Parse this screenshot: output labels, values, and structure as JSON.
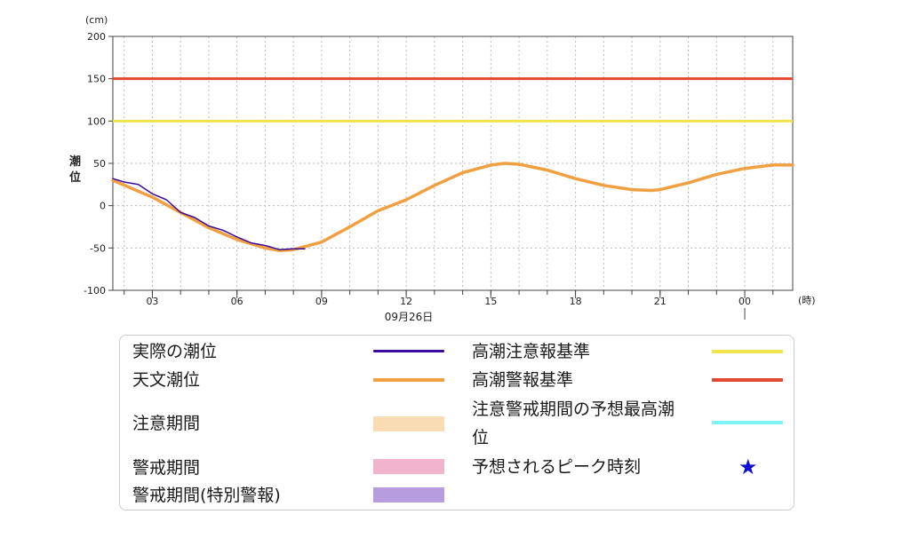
{
  "chart_data": {
    "type": "line",
    "y_unit": "(cm)",
    "ylabel": "潮位",
    "x_unit": "(時)",
    "date_label": "09月26日",
    "ylim": [
      -100,
      200
    ],
    "yticks": [
      -100,
      -50,
      0,
      50,
      100,
      150,
      200
    ],
    "x_range_hours": [
      1.6,
      25.7
    ],
    "xticks": [
      {
        "h": 3,
        "label": "03"
      },
      {
        "h": 6,
        "label": "06"
      },
      {
        "h": 9,
        "label": "09"
      },
      {
        "h": 12,
        "label": "12"
      },
      {
        "h": 15,
        "label": "15"
      },
      {
        "h": 18,
        "label": "18"
      },
      {
        "h": 21,
        "label": "21"
      },
      {
        "h": 24,
        "label": "00"
      }
    ],
    "grid": true,
    "thresholds": [
      {
        "name": "高潮注意報基準",
        "value": 100,
        "color": "#f0e44a"
      },
      {
        "name": "高潮警報基準",
        "value": 150,
        "color": "#e2492f"
      }
    ],
    "series": [
      {
        "name": "天文潮位",
        "color": "#f0a040",
        "x": [
          1.6,
          3.0,
          4.0,
          5.0,
          6.0,
          7.0,
          7.5,
          8.0,
          9.0,
          10.0,
          11.0,
          12.0,
          13.0,
          14.0,
          15.0,
          15.5,
          16.0,
          17.0,
          18.0,
          19.0,
          20.0,
          20.7,
          21.0,
          22.0,
          23.0,
          24.0,
          25.0,
          25.7
        ],
        "values": [
          30,
          10,
          -8,
          -26,
          -40,
          -50,
          -53,
          -52,
          -43,
          -25,
          -6,
          7,
          24,
          39,
          48,
          50,
          49,
          42,
          32,
          24,
          19,
          18,
          19,
          27,
          37,
          44,
          48,
          48
        ]
      },
      {
        "name": "実際の潮位",
        "color": "#3a0aa0",
        "x": [
          1.6,
          2.0,
          2.5,
          3.0,
          3.5,
          4.0,
          4.5,
          5.0,
          5.5,
          6.0,
          6.5,
          7.0,
          7.5,
          8.0,
          8.4
        ],
        "values": [
          32,
          28,
          25,
          14,
          7,
          -8,
          -14,
          -24,
          -29,
          -37,
          -44,
          -47,
          -52,
          -51,
          -51
        ]
      }
    ]
  },
  "legend": {
    "items": [
      {
        "label": "実際の潮位",
        "kind": "line",
        "color": "#3a0aa0"
      },
      {
        "label": "天文潮位",
        "kind": "line",
        "color": "#f0a040"
      },
      {
        "label": "注意期間",
        "kind": "box",
        "color": "#f8dcb4"
      },
      {
        "label": "警戒期間",
        "kind": "box",
        "color": "#f2b4cc"
      },
      {
        "label": "警戒期間(特別警報)",
        "kind": "box",
        "color": "#b89ce0"
      },
      {
        "label": "高潮注意報基準",
        "kind": "line",
        "color": "#f0e44a"
      },
      {
        "label": "高潮警報基準",
        "kind": "line",
        "color": "#e2492f"
      },
      {
        "label_line1": "注意警戒期間の予想最高潮",
        "label_line2": "位",
        "kind": "line",
        "color": "#7cf4f4"
      },
      {
        "label": "予想されるピーク時刻",
        "kind": "star",
        "color": "#1010d0",
        "icon": "★"
      }
    ]
  }
}
